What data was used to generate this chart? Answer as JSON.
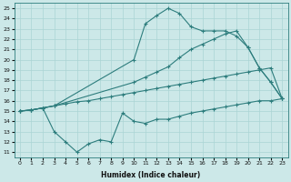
{
  "xlabel": "Humidex (Indice chaleur)",
  "bg_color": "#cce8e8",
  "grid_color": "#aad4d4",
  "line_color": "#2d7d7d",
  "xlim": [
    -0.5,
    23.5
  ],
  "ylim": [
    10.5,
    25.5
  ],
  "xticks": [
    0,
    1,
    2,
    3,
    4,
    5,
    6,
    7,
    8,
    9,
    10,
    11,
    12,
    13,
    14,
    15,
    16,
    17,
    18,
    19,
    20,
    21,
    22,
    23
  ],
  "yticks": [
    11,
    12,
    13,
    14,
    15,
    16,
    17,
    18,
    19,
    20,
    21,
    22,
    23,
    24,
    25
  ],
  "line1_x": [
    0,
    1,
    2,
    3,
    10,
    11,
    12,
    13,
    14,
    15,
    16,
    17,
    18,
    19,
    20,
    21,
    22,
    23
  ],
  "line1_y": [
    15.0,
    15.1,
    15.3,
    15.5,
    20.0,
    23.5,
    24.3,
    25.0,
    24.5,
    23.2,
    22.8,
    22.8,
    22.8,
    22.3,
    21.2,
    19.2,
    17.8,
    16.2
  ],
  "line2_x": [
    0,
    1,
    2,
    3,
    10,
    11,
    12,
    13,
    14,
    15,
    16,
    17,
    18,
    19,
    20,
    21,
    22,
    23
  ],
  "line2_y": [
    15.0,
    15.1,
    15.3,
    15.5,
    17.8,
    18.3,
    18.8,
    19.3,
    20.2,
    21.0,
    21.5,
    22.0,
    22.5,
    22.8,
    21.2,
    19.2,
    17.8,
    16.2
  ],
  "line3_x": [
    0,
    1,
    2,
    3,
    4,
    5,
    6,
    7,
    8,
    9,
    10,
    11,
    12,
    13,
    14,
    15,
    16,
    17,
    18,
    19,
    20,
    21,
    22,
    23
  ],
  "line3_y": [
    15.0,
    15.1,
    15.3,
    15.5,
    15.7,
    15.9,
    16.0,
    16.2,
    16.4,
    16.6,
    16.8,
    17.0,
    17.2,
    17.4,
    17.6,
    17.8,
    18.0,
    18.2,
    18.4,
    18.6,
    18.8,
    19.0,
    19.2,
    16.2
  ],
  "line4_x": [
    0,
    1,
    2,
    3,
    4,
    5,
    6,
    7,
    8,
    9,
    10,
    11,
    12,
    13,
    14,
    15,
    16,
    17,
    18,
    19,
    20,
    21,
    22,
    23
  ],
  "line4_y": [
    15.0,
    15.1,
    15.3,
    13.0,
    12.0,
    11.0,
    11.8,
    12.2,
    12.0,
    14.8,
    14.0,
    13.8,
    14.2,
    14.2,
    14.5,
    14.8,
    15.0,
    15.2,
    15.4,
    15.6,
    15.8,
    16.0,
    16.0,
    16.2
  ]
}
